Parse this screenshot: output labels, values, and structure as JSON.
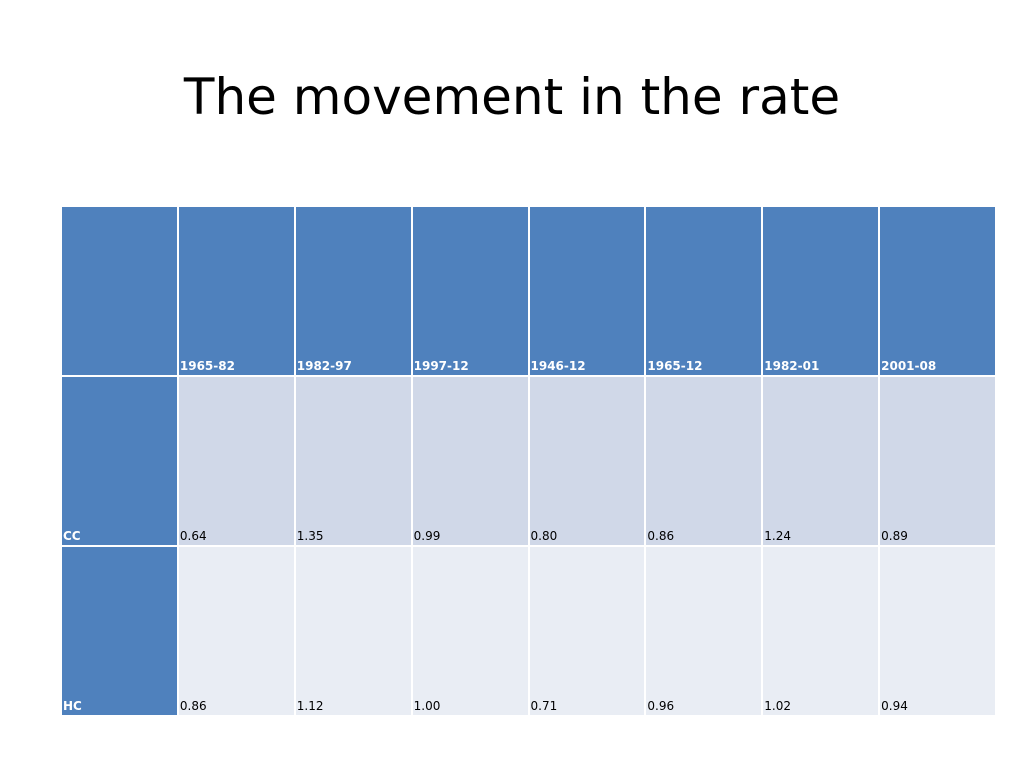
{
  "slide": {
    "title": "The movement in the rate"
  },
  "table": {
    "corner": "",
    "columns": [
      "1965-82",
      "1982-97",
      "1997-12",
      "1946-12",
      "1965-12",
      "1982-01",
      "2001-08"
    ],
    "rows": [
      {
        "label": "CC",
        "values": [
          "0.64",
          "1.35",
          "0.99",
          "0.80",
          "0.86",
          "1.24",
          "0.89"
        ]
      },
      {
        "label": "HC",
        "values": [
          "0.86",
          "1.12",
          "1.00",
          "0.71",
          "0.96",
          "1.02",
          "0.94"
        ]
      }
    ]
  },
  "colors": {
    "header": "#4f81bd",
    "band1": "#d0d8e8",
    "band2": "#e9edf4"
  }
}
